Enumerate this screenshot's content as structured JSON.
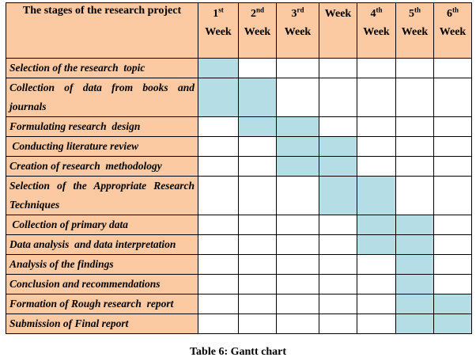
{
  "table": {
    "stage_header": "The stages of the research project",
    "weeks": [
      {
        "num": "1",
        "sup": "st",
        "label": "Week"
      },
      {
        "num": "2",
        "sup": "nd",
        "label": "Week"
      },
      {
        "num": "3",
        "sup": "rd",
        "label": "Week"
      },
      {
        "num": "",
        "sup": "",
        "label": "Week"
      },
      {
        "num": "4",
        "sup": "th",
        "label": "Week"
      },
      {
        "num": "5",
        "sup": "th",
        "label": "Week"
      },
      {
        "num": "6",
        "sup": "th",
        "label": "Week"
      }
    ],
    "active_color": "#b5dde6",
    "header_color": "#fbc9a2",
    "rows": [
      {
        "task": "Selection of the research  topic",
        "active": [
          1,
          0,
          0,
          0,
          0,
          0,
          0
        ]
      },
      {
        "task": "Collection  of  data  from  books  and journals",
        "active": [
          1,
          1,
          0,
          0,
          0,
          0,
          0
        ]
      },
      {
        "task": "Formulating research  design",
        "active": [
          0,
          1,
          1,
          0,
          0,
          0,
          0
        ]
      },
      {
        "task": " Conducting literature review",
        "active": [
          0,
          0,
          1,
          1,
          0,
          0,
          0
        ]
      },
      {
        "task": "Creation of research  methodology",
        "active": [
          0,
          0,
          1,
          1,
          0,
          0,
          0
        ]
      },
      {
        "task": "Selection  of  the  Appropriate  Research Techniques",
        "active": [
          0,
          0,
          0,
          1,
          1,
          0,
          0
        ]
      },
      {
        "task": " Collection of primary data",
        "active": [
          0,
          0,
          0,
          0,
          1,
          1,
          0
        ]
      },
      {
        "task": "Data analysis  and data interpretation",
        "active": [
          0,
          0,
          0,
          0,
          1,
          1,
          0
        ]
      },
      {
        "task": "Analysis of the findings",
        "active": [
          0,
          0,
          0,
          0,
          0,
          1,
          0
        ]
      },
      {
        "task": "Conclusion and recommendations",
        "active": [
          0,
          0,
          0,
          0,
          0,
          1,
          0
        ]
      },
      {
        "task": "Formation of Rough research  report",
        "active": [
          0,
          0,
          0,
          0,
          0,
          1,
          1
        ]
      },
      {
        "task": "Submission of Final report",
        "active": [
          0,
          0,
          0,
          0,
          0,
          1,
          1
        ]
      }
    ]
  },
  "caption": "Table 6: Gantt chart"
}
